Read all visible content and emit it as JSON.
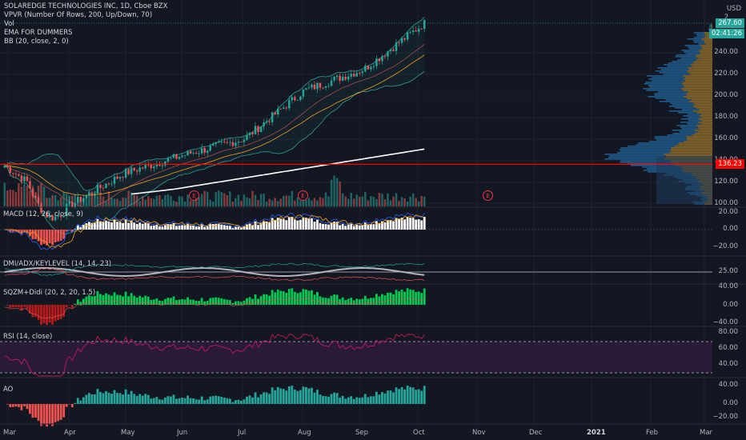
{
  "header": {
    "title": "SOLAREDGE TECHNOLOGIES INC, 1D, Cboe BZX",
    "indicators": [
      "VPVR (Number Of Rows, 200, Up/Down, 70)",
      "Vol",
      "EMA FOR DUMMERS",
      "BB (20, close, 2, 0)"
    ]
  },
  "price_axis": {
    "currency": "USD",
    "ticks": [
      "240.00",
      "220.00",
      "200.00",
      "180.00",
      "160.00",
      "140.00",
      "120.00",
      "100.00"
    ],
    "last_price": "267.60",
    "countdown": "02:41:26",
    "level": "136.23",
    "top_marker": "2"
  },
  "panes": {
    "macd": {
      "label": "MACD (12, 26, close, 9)",
      "ticks": [
        "20.00",
        "0.00",
        "−20.00"
      ]
    },
    "dmi": {
      "label": "DMI/ADX/KEYLEVEL (14, 14, 23)",
      "ticks": [
        "25.00"
      ]
    },
    "sqzm": {
      "label": "SQZM+Didi (20, 2, 20, 1.5)",
      "ticks": [
        "40.00",
        "0.00",
        "−40.00"
      ]
    },
    "rsi": {
      "label": "RSI (14, close)",
      "ticks": [
        "80.00",
        "60.00",
        "40.00"
      ]
    },
    "ao": {
      "label": "AO",
      "ticks": [
        "40.00",
        "0.00",
        "−20.00"
      ]
    }
  },
  "time_axis": [
    "Mar",
    "Apr",
    "May",
    "Jun",
    "Jul",
    "Aug",
    "Sep",
    "Oct",
    "Nov",
    "Dec",
    "2021",
    "Feb",
    "Mar"
  ],
  "events": [
    "E",
    "E",
    "E"
  ],
  "colors": {
    "bg": "#131722",
    "up": "#26a69a",
    "down": "#ef5350",
    "level_line": "#ff0000",
    "sma": "#ffffff",
    "ema": "#f7a21b",
    "bb": "#2aa198",
    "vpvr_up": "#1e5a8a",
    "vpvr_down": "#8a6a2a",
    "rsi_fill": "#2a1a3a"
  },
  "chart_data": [
    {
      "type": "line",
      "title": "SOLAREDGE TECHNOLOGIES INC, 1D, Cboe BZX",
      "x": [
        "Mar",
        "Apr",
        "May",
        "Jun",
        "Jul",
        "Aug",
        "Sep",
        "Oct"
      ],
      "series": [
        {
          "name": "SOLAREDGE TECHNOLOGIES INC",
          "values": [
            135,
            95,
            128,
            145,
            160,
            205,
            225,
            267.6
          ]
        }
      ],
      "ylim": [
        95,
        275
      ],
      "annotations": [
        "136.23"
      ]
    },
    {
      "type": "line",
      "title": "MACD (12, 26, close, 9)",
      "ylim": [
        -25,
        25
      ]
    },
    {
      "type": "line",
      "title": "DMI/ADX/KEYLEVEL (14, 14, 23)"
    },
    {
      "type": "bar",
      "title": "SQZM+Didi (20, 2, 20, 1.5)",
      "ylim": [
        -45,
        45
      ]
    },
    {
      "type": "line",
      "title": "RSI (14, close)",
      "ylim": [
        25,
        85
      ]
    },
    {
      "type": "bar",
      "title": "AO",
      "ylim": [
        -25,
        45
      ]
    }
  ]
}
